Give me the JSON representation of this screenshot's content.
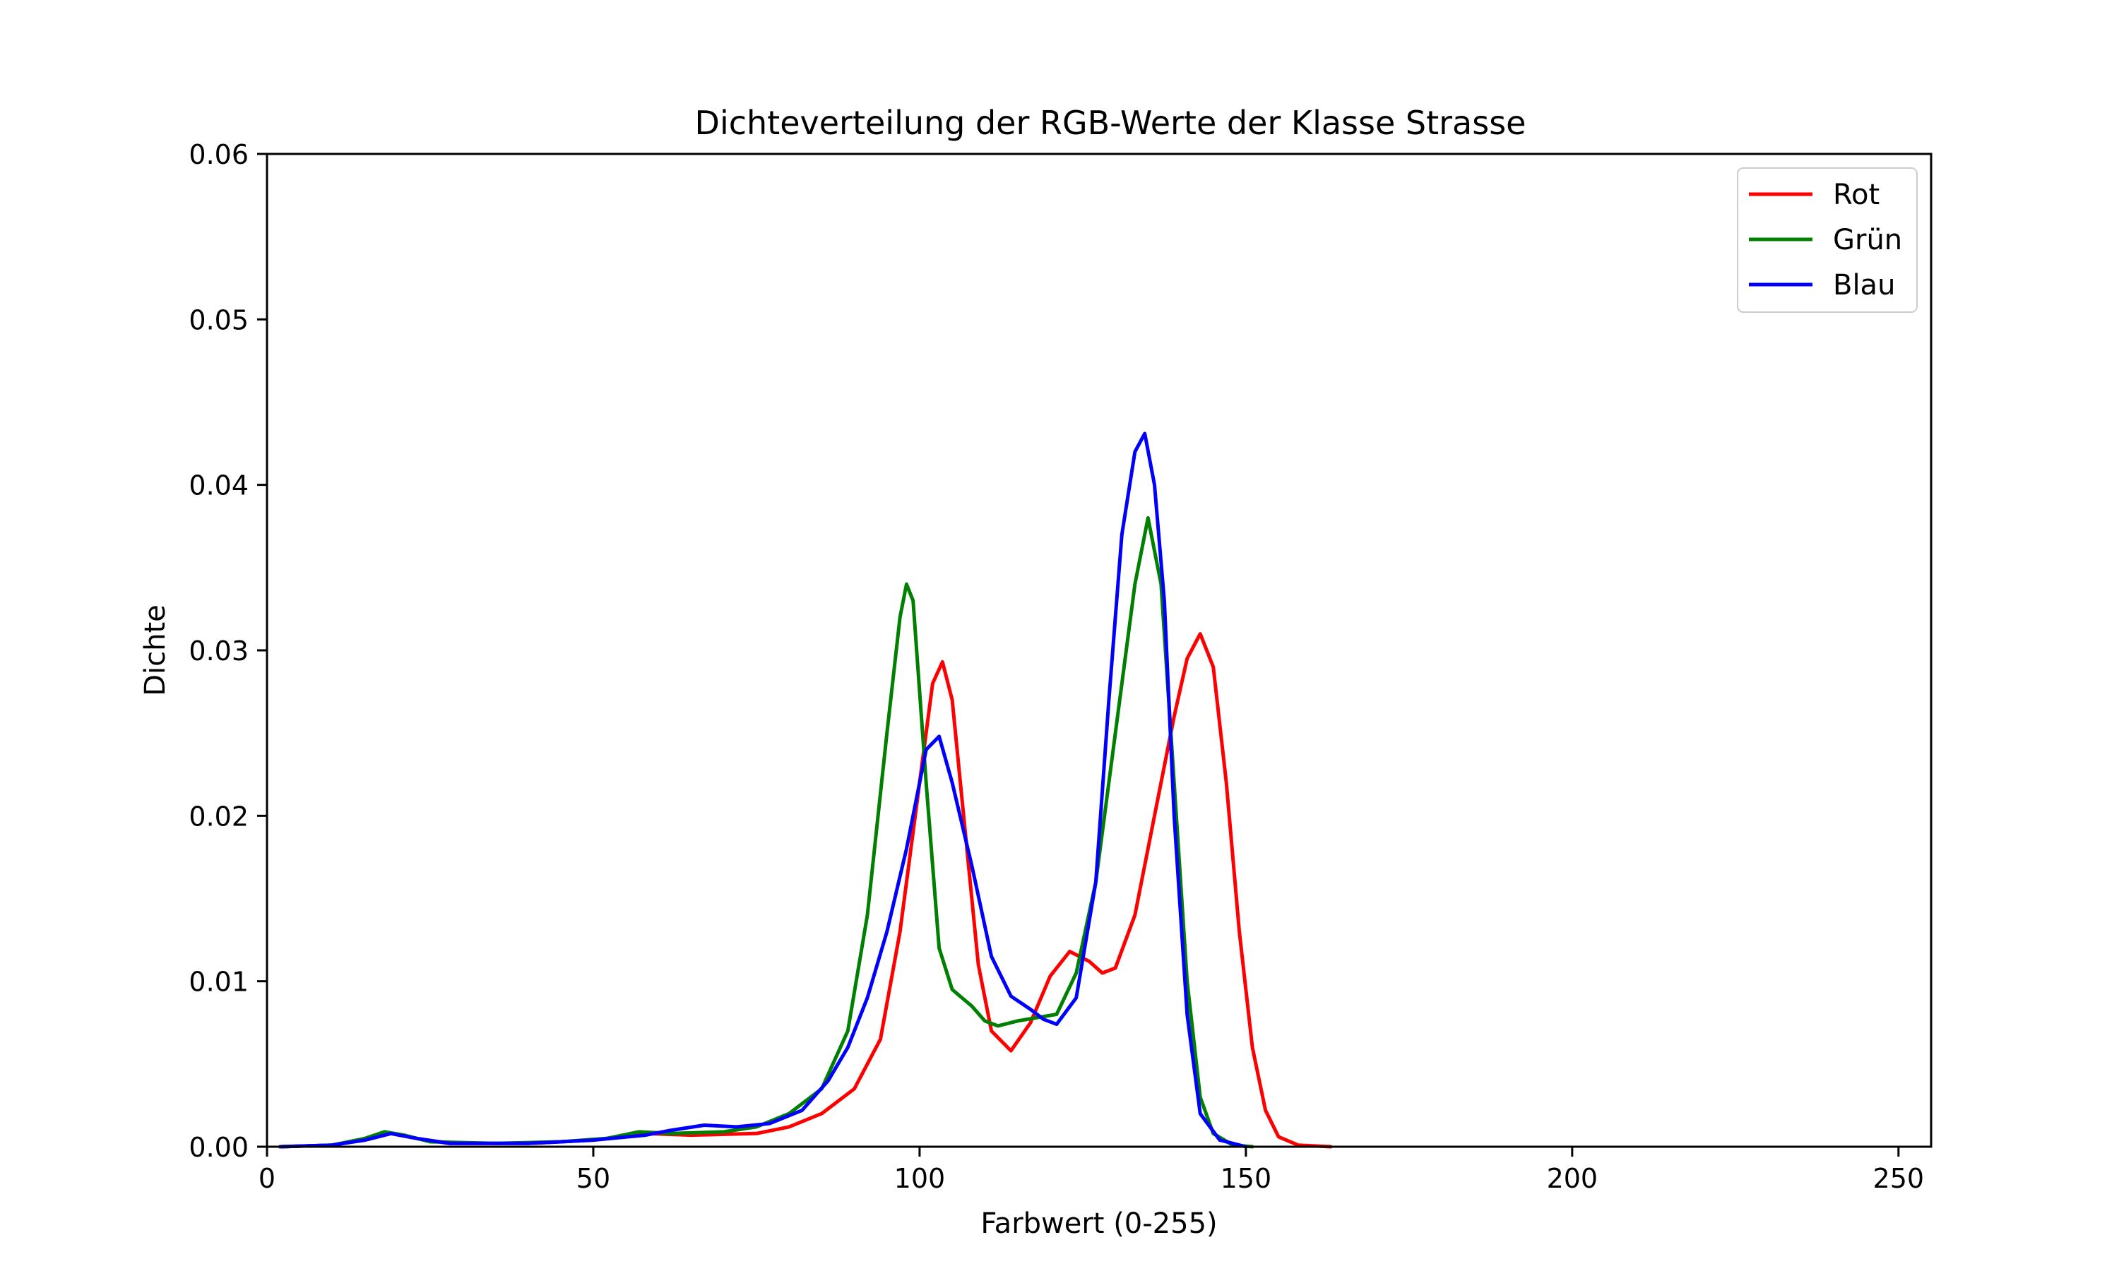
{
  "chart_data": {
    "type": "line",
    "title": "Dichteverteilung der RGB-Werte der Klasse Strasse",
    "xlabel": "Farbwert (0-255)",
    "ylabel": "Dichte",
    "xlim": [
      0,
      255
    ],
    "ylim": [
      0,
      0.06
    ],
    "xticks": [
      0,
      50,
      100,
      150,
      200,
      250
    ],
    "xtick_labels": [
      "0",
      "50",
      "100",
      "150",
      "200",
      "250"
    ],
    "yticks": [
      0,
      0.01,
      0.02,
      0.03,
      0.04,
      0.05,
      0.06
    ],
    "ytick_labels": [
      "0.00",
      "0.01",
      "0.02",
      "0.03",
      "0.04",
      "0.05",
      "0.06"
    ],
    "grid": false,
    "legend_position": "top-right",
    "series": [
      {
        "name": "Rot",
        "color": "#ff0000",
        "points": [
          [
            2,
            0
          ],
          [
            10,
            0.0001
          ],
          [
            15,
            0.0004
          ],
          [
            19,
            0.0008
          ],
          [
            23,
            0.0005
          ],
          [
            28,
            0.0002
          ],
          [
            40,
            0.0002
          ],
          [
            50,
            0.0004
          ],
          [
            58,
            0.0008
          ],
          [
            65,
            0.0007
          ],
          [
            75,
            0.0008
          ],
          [
            80,
            0.0012
          ],
          [
            85,
            0.002
          ],
          [
            90,
            0.0035
          ],
          [
            94,
            0.0065
          ],
          [
            97,
            0.013
          ],
          [
            100,
            0.022
          ],
          [
            102,
            0.028
          ],
          [
            103.5,
            0.0293
          ],
          [
            105,
            0.027
          ],
          [
            107,
            0.019
          ],
          [
            109,
            0.011
          ],
          [
            111,
            0.007
          ],
          [
            114,
            0.0058
          ],
          [
            117,
            0.0075
          ],
          [
            120,
            0.0103
          ],
          [
            123,
            0.0118
          ],
          [
            126,
            0.0112
          ],
          [
            128,
            0.0105
          ],
          [
            130,
            0.0108
          ],
          [
            133,
            0.014
          ],
          [
            136,
            0.02
          ],
          [
            139,
            0.026
          ],
          [
            141,
            0.0295
          ],
          [
            143,
            0.031
          ],
          [
            145,
            0.029
          ],
          [
            147,
            0.022
          ],
          [
            149,
            0.013
          ],
          [
            151,
            0.006
          ],
          [
            153,
            0.0022
          ],
          [
            155,
            0.0006
          ],
          [
            158,
            0.0001
          ],
          [
            163,
            0
          ]
        ]
      },
      {
        "name": "Grün",
        "color": "#008000",
        "points": [
          [
            2,
            0
          ],
          [
            10,
            0.0001
          ],
          [
            15,
            0.0005
          ],
          [
            18,
            0.0009
          ],
          [
            21,
            0.0007
          ],
          [
            25,
            0.0003
          ],
          [
            35,
            0.0002
          ],
          [
            45,
            0.0003
          ],
          [
            52,
            0.0005
          ],
          [
            57,
            0.0009
          ],
          [
            62,
            0.0008
          ],
          [
            70,
            0.0009
          ],
          [
            75,
            0.0012
          ],
          [
            80,
            0.002
          ],
          [
            85,
            0.0035
          ],
          [
            89,
            0.007
          ],
          [
            92,
            0.014
          ],
          [
            95,
            0.025
          ],
          [
            97,
            0.032
          ],
          [
            98,
            0.034
          ],
          [
            99,
            0.033
          ],
          [
            101,
            0.022
          ],
          [
            103,
            0.012
          ],
          [
            105,
            0.0095
          ],
          [
            108,
            0.0085
          ],
          [
            110,
            0.0076
          ],
          [
            112,
            0.0073
          ],
          [
            115,
            0.0076
          ],
          [
            118,
            0.0078
          ],
          [
            121,
            0.008
          ],
          [
            124,
            0.0105
          ],
          [
            127,
            0.016
          ],
          [
            130,
            0.025
          ],
          [
            133,
            0.034
          ],
          [
            135,
            0.038
          ],
          [
            137,
            0.034
          ],
          [
            139,
            0.022
          ],
          [
            141,
            0.01
          ],
          [
            143,
            0.003
          ],
          [
            145,
            0.0008
          ],
          [
            148,
            0.0001
          ],
          [
            151,
            0
          ]
        ]
      },
      {
        "name": "Blau",
        "color": "#0000ff",
        "points": [
          [
            2,
            0
          ],
          [
            10,
            0.0001
          ],
          [
            15,
            0.0004
          ],
          [
            19,
            0.0008
          ],
          [
            23,
            0.0005
          ],
          [
            28,
            0.0002
          ],
          [
            40,
            0.0002
          ],
          [
            50,
            0.0004
          ],
          [
            58,
            0.0007
          ],
          [
            62,
            0.001
          ],
          [
            67,
            0.0013
          ],
          [
            72,
            0.0012
          ],
          [
            77,
            0.0014
          ],
          [
            82,
            0.0022
          ],
          [
            86,
            0.004
          ],
          [
            89,
            0.006
          ],
          [
            92,
            0.009
          ],
          [
            95,
            0.013
          ],
          [
            98,
            0.018
          ],
          [
            101,
            0.024
          ],
          [
            103,
            0.0248
          ],
          [
            105,
            0.022
          ],
          [
            108,
            0.017
          ],
          [
            111,
            0.0115
          ],
          [
            114,
            0.0091
          ],
          [
            117,
            0.0083
          ],
          [
            119,
            0.0077
          ],
          [
            121,
            0.0074
          ],
          [
            124,
            0.009
          ],
          [
            127,
            0.016
          ],
          [
            129,
            0.027
          ],
          [
            131,
            0.037
          ],
          [
            133,
            0.042
          ],
          [
            134.5,
            0.0431
          ],
          [
            136,
            0.04
          ],
          [
            137.5,
            0.033
          ],
          [
            139,
            0.02
          ],
          [
            141,
            0.008
          ],
          [
            143,
            0.002
          ],
          [
            146,
            0.0004
          ],
          [
            150,
            0
          ]
        ]
      }
    ]
  }
}
